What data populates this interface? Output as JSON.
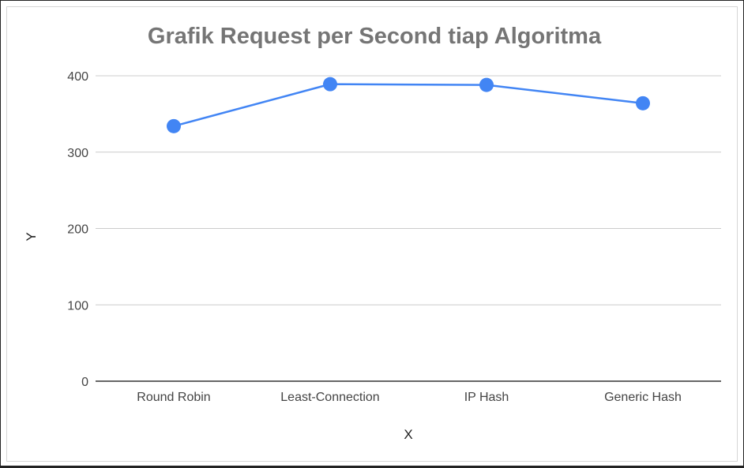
{
  "chart_data": {
    "type": "line",
    "title": "Grafik Request per Second tiap Algoritma",
    "xlabel": "X",
    "ylabel": "Y",
    "categories": [
      "Round Robin",
      "Least-Connection",
      "IP Hash",
      "Generic Hash"
    ],
    "series": [
      {
        "values": [
          334,
          389,
          388,
          364
        ],
        "color": "#4285f4"
      }
    ],
    "yticks": [
      "0",
      "100",
      "200",
      "300",
      "400"
    ],
    "ylim": [
      0,
      400
    ],
    "grid": true,
    "legend": "none"
  }
}
